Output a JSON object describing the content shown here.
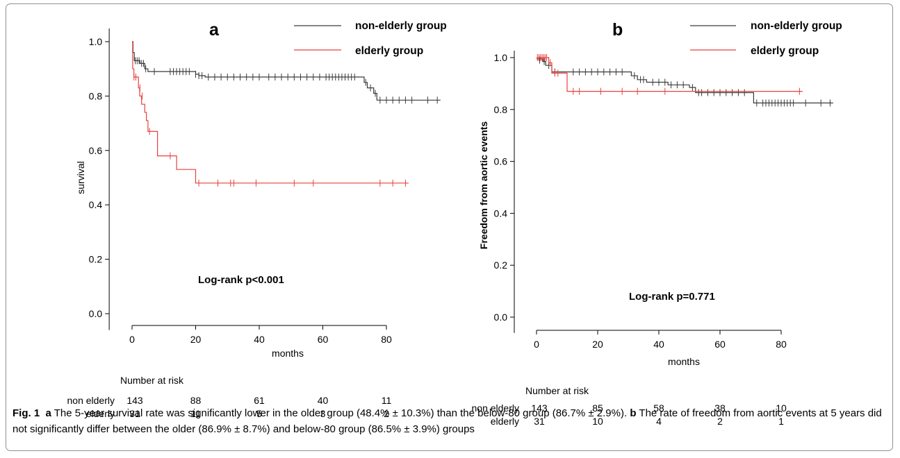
{
  "colors": {
    "nonelderly": "#3a3a3a",
    "elderly": "#e8403c",
    "frame": "#8f8f8f"
  },
  "legend": {
    "nonelderly": "non-elderly group",
    "elderly": "elderly group"
  },
  "chart_data": [
    {
      "type": "line",
      "panel": "a",
      "panel_label": "a",
      "xlabel": "months",
      "ylabel": "survival",
      "xlim": [
        -5,
        97
      ],
      "ylim": [
        -0.05,
        1.05
      ],
      "xticks": [
        0,
        20,
        40,
        60,
        80
      ],
      "yticks": [
        0.0,
        0.2,
        0.4,
        0.6,
        0.8,
        1.0
      ],
      "ytick_labels": [
        "0.0",
        "0.2",
        "0.4",
        "0.6",
        "0.8",
        "1.0"
      ],
      "annotation": "Log-rank   p<0.001",
      "series": [
        {
          "name": "non-elderly group",
          "color_key": "nonelderly",
          "steps": [
            [
              0,
              1.0
            ],
            [
              0.3,
              0.96
            ],
            [
              0.7,
              0.93
            ],
            [
              2.5,
              0.92
            ],
            [
              4,
              0.9
            ],
            [
              5,
              0.89
            ],
            [
              20,
              0.88
            ],
            [
              21,
              0.875
            ],
            [
              23,
              0.87
            ],
            [
              71,
              0.87
            ],
            [
              73,
              0.85
            ],
            [
              74,
              0.83
            ],
            [
              76,
              0.81
            ],
            [
              77,
              0.785
            ],
            [
              97,
              0.785
            ]
          ],
          "censors": [
            [
              1,
              0.93
            ],
            [
              1.6,
              0.93
            ],
            [
              2.2,
              0.93
            ],
            [
              3,
              0.92
            ],
            [
              3.6,
              0.92
            ],
            [
              4.3,
              0.9
            ],
            [
              7,
              0.89
            ],
            [
              12,
              0.89
            ],
            [
              13,
              0.89
            ],
            [
              14,
              0.89
            ],
            [
              15,
              0.89
            ],
            [
              16,
              0.89
            ],
            [
              17,
              0.89
            ],
            [
              18,
              0.89
            ],
            [
              20,
              0.88
            ],
            [
              21,
              0.875
            ],
            [
              22,
              0.875
            ],
            [
              24,
              0.87
            ],
            [
              26,
              0.87
            ],
            [
              28,
              0.87
            ],
            [
              30,
              0.87
            ],
            [
              32,
              0.87
            ],
            [
              34,
              0.87
            ],
            [
              36,
              0.87
            ],
            [
              38,
              0.87
            ],
            [
              40,
              0.87
            ],
            [
              43,
              0.87
            ],
            [
              45,
              0.87
            ],
            [
              47,
              0.87
            ],
            [
              49,
              0.87
            ],
            [
              51,
              0.87
            ],
            [
              53,
              0.87
            ],
            [
              55,
              0.87
            ],
            [
              57,
              0.87
            ],
            [
              59,
              0.87
            ],
            [
              61,
              0.87
            ],
            [
              62,
              0.87
            ],
            [
              63,
              0.87
            ],
            [
              64,
              0.87
            ],
            [
              65,
              0.87
            ],
            [
              66,
              0.87
            ],
            [
              67,
              0.87
            ],
            [
              68,
              0.87
            ],
            [
              69,
              0.87
            ],
            [
              70,
              0.87
            ],
            [
              73.5,
              0.85
            ],
            [
              75,
              0.83
            ],
            [
              76.5,
              0.81
            ],
            [
              78,
              0.785
            ],
            [
              80,
              0.785
            ],
            [
              82,
              0.785
            ],
            [
              84,
              0.785
            ],
            [
              86,
              0.785
            ],
            [
              88,
              0.785
            ],
            [
              93,
              0.785
            ],
            [
              96,
              0.785
            ]
          ]
        },
        {
          "name": "elderly group",
          "color_key": "elderly",
          "steps": [
            [
              0,
              1.0
            ],
            [
              0.2,
              0.9
            ],
            [
              0.6,
              0.87
            ],
            [
              2,
              0.83
            ],
            [
              2.4,
              0.8
            ],
            [
              3,
              0.77
            ],
            [
              4,
              0.74
            ],
            [
              4.5,
              0.71
            ],
            [
              5,
              0.67
            ],
            [
              8,
              0.58
            ],
            [
              14,
              0.53
            ],
            [
              20,
              0.48
            ],
            [
              87,
              0.48
            ]
          ],
          "censors": [
            [
              0.6,
              0.87
            ],
            [
              1.2,
              0.87
            ],
            [
              2.5,
              0.83
            ],
            [
              3.2,
              0.8
            ],
            [
              5.5,
              0.67
            ],
            [
              12,
              0.58
            ],
            [
              21,
              0.48
            ],
            [
              27,
              0.48
            ],
            [
              31,
              0.48
            ],
            [
              32,
              0.48
            ],
            [
              39,
              0.48
            ],
            [
              51,
              0.48
            ],
            [
              57,
              0.48
            ],
            [
              78,
              0.48
            ],
            [
              82,
              0.48
            ],
            [
              86,
              0.48
            ]
          ]
        }
      ],
      "risk_table": {
        "title": "Number at risk",
        "rows": [
          {
            "label": "non elderly",
            "values": [
              "143",
              "88",
              "61",
              "40",
              "11"
            ]
          },
          {
            "label": "elderly",
            "values": [
              "31",
              "11",
              "5",
              "3",
              "2"
            ]
          }
        ]
      }
    },
    {
      "type": "line",
      "panel": "b",
      "panel_label": "b",
      "xlabel": "months",
      "ylabel": "Freedom from aortic events",
      "xlim": [
        -5,
        97
      ],
      "ylim": [
        -0.05,
        1.05
      ],
      "xticks": [
        0,
        20,
        40,
        60,
        80
      ],
      "yticks": [
        0.0,
        0.2,
        0.4,
        0.6,
        0.8,
        1.0
      ],
      "ytick_labels": [
        "0.0",
        "0.2",
        "0.4",
        "0.6",
        "0.8",
        "1.0"
      ],
      "annotation": "Log-rank   p=0.771",
      "series": [
        {
          "name": "non-elderly group",
          "color_key": "nonelderly",
          "steps": [
            [
              0,
              0.995
            ],
            [
              2,
              0.985
            ],
            [
              3,
              0.97
            ],
            [
              5,
              0.945
            ],
            [
              29,
              0.945
            ],
            [
              31,
              0.93
            ],
            [
              33,
              0.915
            ],
            [
              36,
              0.905
            ],
            [
              43,
              0.895
            ],
            [
              50,
              0.885
            ],
            [
              52,
              0.865
            ],
            [
              70,
              0.865
            ],
            [
              71,
              0.825
            ],
            [
              97,
              0.825
            ]
          ],
          "censors": [
            [
              1,
              0.99
            ],
            [
              2.5,
              0.985
            ],
            [
              4,
              0.97
            ],
            [
              6,
              0.945
            ],
            [
              12,
              0.945
            ],
            [
              14,
              0.945
            ],
            [
              16,
              0.945
            ],
            [
              18,
              0.945
            ],
            [
              20,
              0.945
            ],
            [
              22,
              0.945
            ],
            [
              24,
              0.945
            ],
            [
              26,
              0.945
            ],
            [
              28,
              0.945
            ],
            [
              32,
              0.93
            ],
            [
              34,
              0.915
            ],
            [
              35,
              0.915
            ],
            [
              38,
              0.905
            ],
            [
              40,
              0.905
            ],
            [
              42,
              0.905
            ],
            [
              44,
              0.895
            ],
            [
              46,
              0.895
            ],
            [
              48,
              0.895
            ],
            [
              51,
              0.885
            ],
            [
              53,
              0.865
            ],
            [
              54,
              0.865
            ],
            [
              56,
              0.865
            ],
            [
              58,
              0.865
            ],
            [
              60,
              0.865
            ],
            [
              62,
              0.865
            ],
            [
              64,
              0.865
            ],
            [
              66,
              0.865
            ],
            [
              68,
              0.865
            ],
            [
              72,
              0.825
            ],
            [
              74,
              0.825
            ],
            [
              75,
              0.825
            ],
            [
              76,
              0.825
            ],
            [
              77,
              0.825
            ],
            [
              78,
              0.825
            ],
            [
              79,
              0.825
            ],
            [
              80,
              0.825
            ],
            [
              81,
              0.825
            ],
            [
              82,
              0.825
            ],
            [
              83,
              0.825
            ],
            [
              84,
              0.825
            ],
            [
              88,
              0.825
            ],
            [
              93,
              0.825
            ],
            [
              96,
              0.825
            ]
          ]
        },
        {
          "name": "elderly group",
          "color_key": "elderly",
          "steps": [
            [
              0,
              1.0
            ],
            [
              4,
              0.98
            ],
            [
              5,
              0.94
            ],
            [
              10,
              0.87
            ],
            [
              87,
              0.87
            ]
          ],
          "censors": [
            [
              0.3,
              1.0
            ],
            [
              0.8,
              1.0
            ],
            [
              1.3,
              1.0
            ],
            [
              1.8,
              1.0
            ],
            [
              2.3,
              1.0
            ],
            [
              2.8,
              1.0
            ],
            [
              3.3,
              1.0
            ],
            [
              4.5,
              0.98
            ],
            [
              6,
              0.94
            ],
            [
              7,
              0.94
            ],
            [
              12,
              0.87
            ],
            [
              14,
              0.87
            ],
            [
              21,
              0.87
            ],
            [
              28,
              0.87
            ],
            [
              33,
              0.87
            ],
            [
              42,
              0.87
            ],
            [
              86,
              0.87
            ]
          ]
        }
      ],
      "risk_table": {
        "title": "Number at risk",
        "rows": [
          {
            "label": "non elderly",
            "values": [
              "143",
              "85",
              "58",
              "38",
              "10"
            ]
          },
          {
            "label": "elderly",
            "values": [
              "31",
              "10",
              "4",
              "2",
              "1"
            ]
          }
        ]
      }
    }
  ],
  "caption": {
    "fig_label": "Fig. 1",
    "a_label": "a",
    "a_text": "The 5-year survival rate was significantly lower in the older group (48.4% ± 10.3%) than the below-80 group (86.7% ± 2.9%).",
    "b_label": "b",
    "b_text": "The rate of freedom from aortic events at 5 years did not significantly differ between the older (86.9% ± 8.7%) and below-80 group (86.5% ± 3.9%) groups"
  }
}
